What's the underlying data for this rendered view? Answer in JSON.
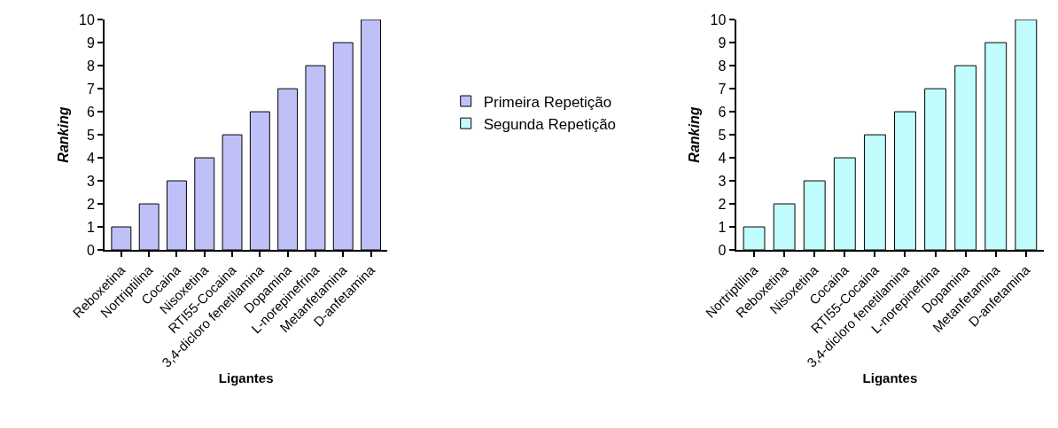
{
  "chart_data": [
    {
      "type": "bar",
      "xlabel": "Ligantes",
      "ylabel": "Ranking",
      "categories": [
        "Reboxetina",
        "Nortriptilina",
        "Cocaina",
        "Nisoxetina",
        "RTI55-Cocaina",
        "3,4-dicloro fenetilamina",
        "Dopamina",
        "L-norepinefrina",
        "Metanfetamina",
        "D-anfetamina"
      ],
      "series": [
        {
          "name": "Primeira Repetição",
          "color": "#c0c0f8",
          "values": [
            1,
            2,
            3,
            4,
            5,
            6,
            7,
            8,
            9,
            10
          ]
        }
      ],
      "ylim": [
        0,
        10
      ],
      "yticks": [
        0,
        1,
        2,
        3,
        4,
        5,
        6,
        7,
        8,
        9,
        10
      ],
      "legend": "right"
    },
    {
      "type": "bar",
      "xlabel": "Ligantes",
      "ylabel": "Ranking",
      "categories": [
        "Nortriptilina",
        "Reboxetina",
        "Nisoxetina",
        "Cocaina",
        "RTI55-Cocaina",
        "3,4-dicloro fenetilamina",
        "L-norepinefrina",
        "Dopamina",
        "Metanfetamina",
        "D-anfetamina"
      ],
      "series": [
        {
          "name": "Segunda Repetição",
          "color": "#c0fcfc",
          "values": [
            1,
            2,
            3,
            4,
            5,
            6,
            7,
            8,
            9,
            10
          ]
        }
      ],
      "ylim": [
        0,
        10
      ],
      "yticks": [
        0,
        1,
        2,
        3,
        4,
        5,
        6,
        7,
        8,
        9,
        10
      ],
      "legend": "left"
    }
  ]
}
